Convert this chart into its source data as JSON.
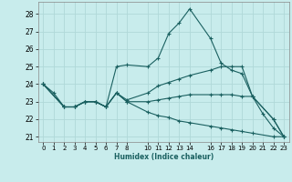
{
  "xlabel": "Humidex (Indice chaleur)",
  "bg_color": "#c8ecec",
  "grid_color": "#b0d8d8",
  "line_color": "#1a6060",
  "xlim": [
    -0.5,
    23.5
  ],
  "ylim": [
    20.7,
    28.7
  ],
  "yticks": [
    21,
    22,
    23,
    24,
    25,
    26,
    27,
    28
  ],
  "xticks": [
    0,
    1,
    2,
    3,
    4,
    5,
    6,
    7,
    8,
    10,
    11,
    12,
    13,
    14,
    16,
    17,
    18,
    19,
    20,
    21,
    22,
    23
  ],
  "xtick_labels": [
    "0",
    "1",
    "2",
    "3",
    "4",
    "5",
    "6",
    "7",
    "8",
    "1011",
    "12",
    "13",
    "14",
    "",
    "1617",
    "18",
    "19",
    "20",
    "21",
    "22",
    "23",
    ""
  ],
  "series": [
    {
      "x": [
        0,
        1,
        2,
        3,
        4,
        5,
        6,
        7,
        8,
        10,
        11,
        12,
        13,
        14,
        16,
        17,
        18,
        19,
        20,
        21,
        22,
        23
      ],
      "y": [
        24.0,
        23.5,
        22.7,
        22.7,
        23.0,
        23.0,
        22.7,
        25.0,
        25.1,
        25.0,
        25.5,
        26.9,
        27.5,
        28.3,
        26.6,
        25.2,
        24.8,
        24.6,
        23.3,
        22.3,
        21.5,
        21.0
      ]
    },
    {
      "x": [
        0,
        2,
        3,
        4,
        5,
        6,
        7,
        8,
        10,
        11,
        12,
        13,
        14,
        16,
        17,
        18,
        19,
        20,
        22,
        23
      ],
      "y": [
        24.0,
        22.7,
        22.7,
        23.0,
        23.0,
        22.7,
        23.5,
        23.1,
        23.5,
        23.9,
        24.1,
        24.3,
        24.5,
        24.8,
        25.0,
        25.0,
        25.0,
        23.3,
        22.0,
        21.0
      ]
    },
    {
      "x": [
        0,
        2,
        3,
        4,
        5,
        6,
        7,
        8,
        10,
        11,
        12,
        13,
        14,
        16,
        17,
        18,
        19,
        20,
        22,
        23
      ],
      "y": [
        24.0,
        22.7,
        22.7,
        23.0,
        23.0,
        22.7,
        23.5,
        23.0,
        23.0,
        23.1,
        23.2,
        23.3,
        23.4,
        23.4,
        23.4,
        23.4,
        23.3,
        23.3,
        22.0,
        21.0
      ]
    },
    {
      "x": [
        0,
        2,
        3,
        4,
        5,
        6,
        7,
        8,
        10,
        11,
        12,
        13,
        14,
        16,
        17,
        18,
        19,
        20,
        22,
        23
      ],
      "y": [
        24.0,
        22.7,
        22.7,
        23.0,
        23.0,
        22.7,
        23.5,
        23.0,
        22.4,
        22.2,
        22.1,
        21.9,
        21.8,
        21.6,
        21.5,
        21.4,
        21.3,
        21.2,
        21.0,
        21.0
      ]
    }
  ]
}
